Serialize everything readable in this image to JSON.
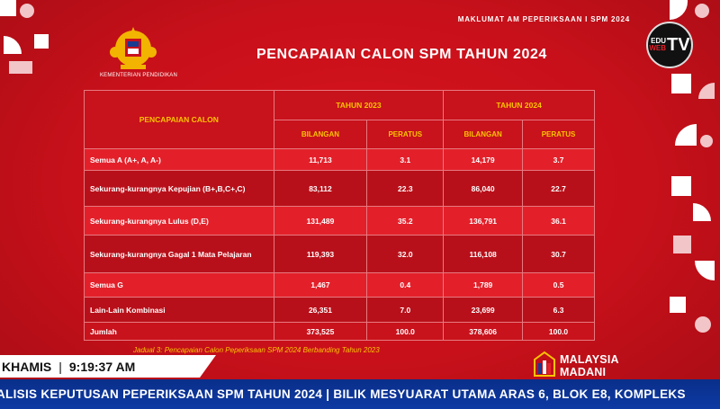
{
  "header": {
    "info": "MAKLUMAT AM PEPERIKSAAN I SPM 2024",
    "ministry": "KEMENTERIAN PENDIDIKAN",
    "title": "PENCAPAIAN CALON SPM TAHUN 2024"
  },
  "channel_logo": {
    "edu": "EDU",
    "web": "WEB",
    "tv": "TV"
  },
  "table": {
    "col_main": "PENCAPAIAN CALON",
    "year_2023": "TAHUN 2023",
    "year_2024": "TAHUN 2024",
    "sub_bilangan": "BILANGAN",
    "sub_peratus": "PERATUS",
    "rows": [
      {
        "label": "Semua A (A+, A, A-)",
        "b2023": "11,713",
        "p2023": "3.1",
        "b2024": "14,179",
        "p2024": "3.7"
      },
      {
        "label": "Sekurang-kurangnya Kepujian (B+,B,C+,C)",
        "b2023": "83,112",
        "p2023": "22.3",
        "b2024": "86,040",
        "p2024": "22.7"
      },
      {
        "label": "Sekurang-kurangnya Lulus (D,E)",
        "b2023": "131,489",
        "p2023": "35.2",
        "b2024": "136,791",
        "p2024": "36.1"
      },
      {
        "label": "Sekurang-kurangnya Gagal 1 Mata Pelajaran",
        "b2023": "119,393",
        "p2023": "32.0",
        "b2024": "116,108",
        "p2024": "30.7"
      },
      {
        "label": "Semua G",
        "b2023": "1,467",
        "p2023": "0.4",
        "b2024": "1,789",
        "p2024": "0.5"
      },
      {
        "label": "Lain-Lain Kombinasi",
        "b2023": "26,351",
        "p2023": "7.0",
        "b2024": "23,699",
        "p2024": "6.3"
      },
      {
        "label": "Jumlah",
        "b2023": "373,525",
        "p2023": "100.0",
        "b2024": "378,606",
        "p2024": "100.0"
      }
    ]
  },
  "caption": "Jadual 3: Pencapaian Calon Peperiksaan SPM 2024 Berbanding Tahun 2023",
  "clock": {
    "day": "KHAMIS",
    "time": "9:19:37 AM"
  },
  "madani": {
    "line1": "MALAYSIA",
    "line2": "MADANI"
  },
  "ticker": "ALISIS KEPUTUSAN PEPERIKSAAN SPM TAHUN 2024 | BILIK MESYUARAT UTAMA ARAS 6, BLOK E8, KOMPLEKS",
  "colors": {
    "background": "#d41923",
    "accent_yellow": "#f9c400",
    "ticker_blue": "#0d3aa3"
  }
}
